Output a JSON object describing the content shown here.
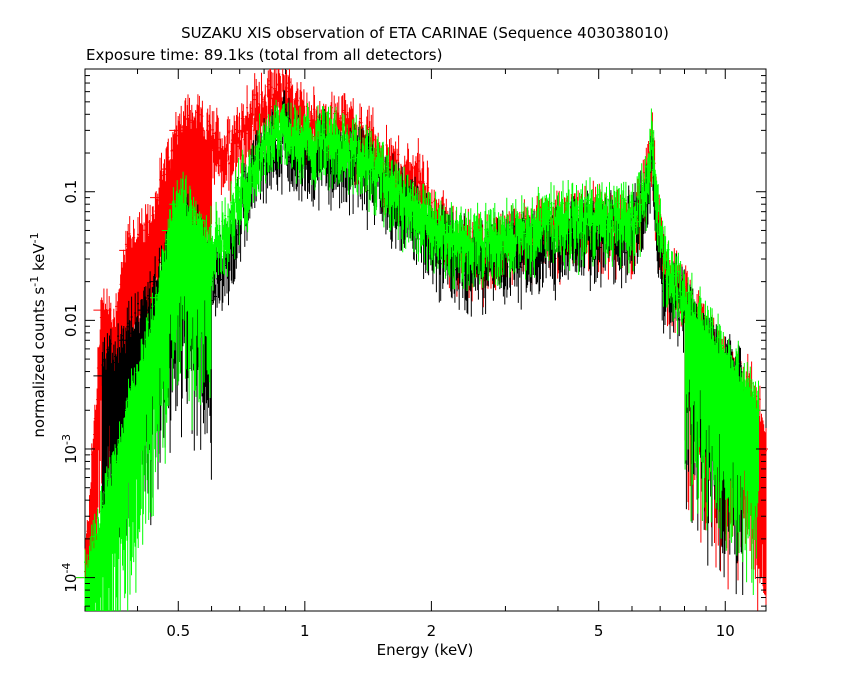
{
  "colors": {
    "background": "#ffffff",
    "axis": "#000000",
    "series_xis0": "#000000",
    "series_xis1": "#ff0000",
    "series_xis3": "#00ff00"
  },
  "chart_data": {
    "type": "scatter",
    "title": "SUZAKU XIS observation of ETA CARINAE (Sequence 403038010)",
    "subtitle": "Exposure time: 89.1ks (total from all detectors)",
    "xlabel": "Energy (keV)",
    "ylabel_base": "normalized counts s",
    "ylabel_exp1": "-1",
    "ylabel_mid": " keV",
    "ylabel_exp2": "-1",
    "x_scale": "log",
    "y_scale": "log",
    "xlim": [
      0.3,
      12.5
    ],
    "ylim": [
      5.5e-05,
      0.9
    ],
    "grid": false,
    "x_ticks": [
      {
        "value": 0.5,
        "label": "0.5"
      },
      {
        "value": 1,
        "label": "1"
      },
      {
        "value": 2,
        "label": "2"
      },
      {
        "value": 5,
        "label": "5"
      },
      {
        "value": 10,
        "label": "10"
      }
    ],
    "y_ticks": [
      {
        "value": 0.0001,
        "base": "10",
        "exp": "-4"
      },
      {
        "value": 0.001,
        "base": "10",
        "exp": "-3"
      },
      {
        "value": 0.01,
        "base": "0.01",
        "exp": ""
      },
      {
        "value": 0.1,
        "base": "0.1",
        "exp": ""
      }
    ],
    "series": [
      {
        "color": "#ff0000",
        "scatter": 0.3,
        "points": [
          [
            0.3,
            0.0001
          ],
          [
            0.33,
            0.012
          ],
          [
            0.35,
            0.008
          ],
          [
            0.38,
            0.035
          ],
          [
            0.42,
            0.04
          ],
          [
            0.45,
            0.09
          ],
          [
            0.48,
            0.15
          ],
          [
            0.5,
            0.3
          ],
          [
            0.55,
            0.3
          ],
          [
            0.6,
            0.25
          ],
          [
            0.65,
            0.2
          ],
          [
            0.7,
            0.3
          ],
          [
            0.75,
            0.4
          ],
          [
            0.8,
            0.5
          ],
          [
            0.85,
            0.55
          ],
          [
            0.9,
            0.6
          ],
          [
            0.95,
            0.45
          ],
          [
            1.0,
            0.35
          ],
          [
            1.1,
            0.3
          ],
          [
            1.2,
            0.35
          ],
          [
            1.3,
            0.3
          ],
          [
            1.4,
            0.25
          ],
          [
            1.6,
            0.15
          ],
          [
            1.8,
            0.12
          ],
          [
            1.85,
            0.15
          ],
          [
            2.0,
            0.07
          ],
          [
            2.2,
            0.045
          ],
          [
            2.5,
            0.035
          ],
          [
            3.0,
            0.04
          ],
          [
            3.5,
            0.05
          ],
          [
            4.0,
            0.055
          ],
          [
            4.5,
            0.06
          ],
          [
            5.0,
            0.06
          ],
          [
            5.5,
            0.055
          ],
          [
            6.0,
            0.06
          ],
          [
            6.4,
            0.09
          ],
          [
            6.7,
            0.22
          ],
          [
            6.9,
            0.06
          ],
          [
            7.2,
            0.025
          ],
          [
            8.0,
            0.015
          ],
          [
            9.0,
            0.007
          ],
          [
            10.0,
            0.004
          ],
          [
            11.0,
            0.003
          ],
          [
            12.0,
            0.002
          ],
          [
            12.5,
            0.001
          ]
        ]
      },
      {
        "color": "#000000",
        "scatter": 0.35,
        "points": [
          [
            0.33,
            0.0037
          ],
          [
            0.38,
            0.007
          ],
          [
            0.42,
            0.012
          ],
          [
            0.45,
            0.02
          ],
          [
            0.5,
            0.05
          ],
          [
            0.55,
            0.04
          ],
          [
            0.6,
            0.02
          ],
          [
            0.65,
            0.03
          ],
          [
            0.7,
            0.08
          ],
          [
            0.75,
            0.15
          ],
          [
            0.8,
            0.2
          ],
          [
            0.85,
            0.25
          ],
          [
            0.9,
            0.3
          ],
          [
            0.95,
            0.2
          ],
          [
            1.0,
            0.18
          ],
          [
            1.1,
            0.22
          ],
          [
            1.2,
            0.2
          ],
          [
            1.4,
            0.15
          ],
          [
            1.6,
            0.1
          ],
          [
            1.8,
            0.07
          ],
          [
            2.0,
            0.045
          ],
          [
            2.5,
            0.03
          ],
          [
            3.0,
            0.035
          ],
          [
            3.5,
            0.04
          ],
          [
            4.0,
            0.045
          ],
          [
            4.5,
            0.05
          ],
          [
            5.0,
            0.05
          ],
          [
            5.5,
            0.05
          ],
          [
            6.0,
            0.05
          ],
          [
            6.4,
            0.08
          ],
          [
            6.7,
            0.18
          ],
          [
            6.9,
            0.05
          ],
          [
            7.2,
            0.02
          ],
          [
            8.0,
            0.012
          ],
          [
            9.0,
            0.006
          ],
          [
            10.0,
            0.004
          ],
          [
            11.0,
            0.003
          ]
        ]
      },
      {
        "color": "#00ff00",
        "scatter": 0.28,
        "points": [
          [
            0.3,
            0.0001
          ],
          [
            0.45,
            0.015
          ],
          [
            0.48,
            0.05
          ],
          [
            0.5,
            0.08
          ],
          [
            0.55,
            0.06
          ],
          [
            0.6,
            0.04
          ],
          [
            0.65,
            0.05
          ],
          [
            0.7,
            0.1
          ],
          [
            0.75,
            0.15
          ],
          [
            0.8,
            0.25
          ],
          [
            0.85,
            0.3
          ],
          [
            0.9,
            0.35
          ],
          [
            0.95,
            0.25
          ],
          [
            1.0,
            0.25
          ],
          [
            1.1,
            0.28
          ],
          [
            1.2,
            0.25
          ],
          [
            1.4,
            0.2
          ],
          [
            1.6,
            0.12
          ],
          [
            1.8,
            0.08
          ],
          [
            2.0,
            0.055
          ],
          [
            2.5,
            0.04
          ],
          [
            3.0,
            0.045
          ],
          [
            3.5,
            0.055
          ],
          [
            4.0,
            0.06
          ],
          [
            4.5,
            0.065
          ],
          [
            5.0,
            0.07
          ],
          [
            5.5,
            0.065
          ],
          [
            6.0,
            0.065
          ],
          [
            6.4,
            0.1
          ],
          [
            6.7,
            0.24
          ],
          [
            6.9,
            0.07
          ],
          [
            7.2,
            0.03
          ],
          [
            8.0,
            0.015
          ],
          [
            9.0,
            0.008
          ],
          [
            10.0,
            0.005
          ],
          [
            11.0,
            0.003
          ],
          [
            12.0,
            0.002
          ]
        ]
      }
    ]
  }
}
